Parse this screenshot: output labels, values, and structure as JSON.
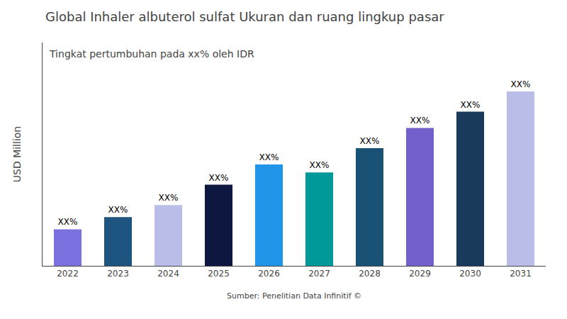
{
  "chart_data": {
    "type": "bar",
    "title": "Global Inhaler albuterol sulfat Ukuran dan ruang lingkup pasar",
    "subtitle": "Tingkat pertumbuhan pada xx% oleh IDR",
    "ylabel": "USD Million",
    "source": "Sumber: Penelitian Data Infinitif ©",
    "categories": [
      "2022",
      "2023",
      "2024",
      "2025",
      "2026",
      "2027",
      "2028",
      "2029",
      "2030",
      "2031"
    ],
    "values": [
      18,
      24,
      30,
      40,
      50,
      46,
      58,
      68,
      76,
      86
    ],
    "value_labels": [
      "XX%",
      "XX%",
      "XX%",
      "XX%",
      "XX%",
      "XX%",
      "XX%",
      "XX%",
      "XX%",
      "XX%"
    ],
    "data_labels": true,
    "colors": [
      "#7B72E0",
      "#1E5580",
      "#BABDE8",
      "#0D1740",
      "#2196E8",
      "#009999",
      "#1A5276",
      "#7460CC",
      "#1A3A5C",
      "#BABDE8"
    ],
    "ylim": [
      0,
      110.08
    ],
    "tick_labels": "x",
    "grid": false
  }
}
